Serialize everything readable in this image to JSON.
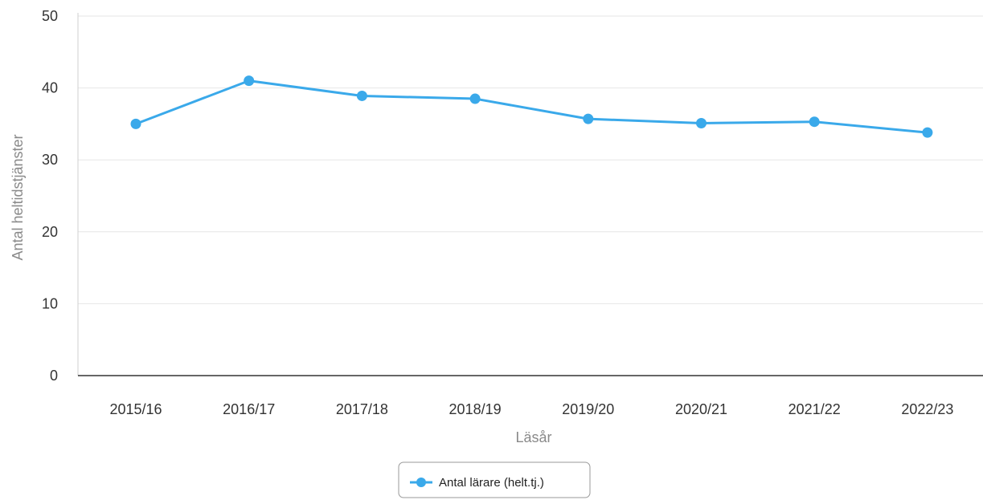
{
  "chart_data": {
    "type": "line",
    "title": "",
    "xlabel": "Läsår",
    "ylabel": "Antal heltidstjänster",
    "categories": [
      "2015/16",
      "2016/17",
      "2017/18",
      "2018/19",
      "2019/20",
      "2020/21",
      "2021/22",
      "2022/23"
    ],
    "series": [
      {
        "name": "Antal lärare (helt.tj.)",
        "values": [
          35.0,
          41.0,
          38.9,
          38.5,
          35.7,
          35.1,
          35.3,
          33.8
        ],
        "color": "#3aa9ea"
      }
    ],
    "ylim": [
      0,
      50
    ],
    "yticks": [
      "0",
      "10",
      "20",
      "30",
      "40",
      "50"
    ],
    "grid": true,
    "legend": "bottom-center"
  }
}
